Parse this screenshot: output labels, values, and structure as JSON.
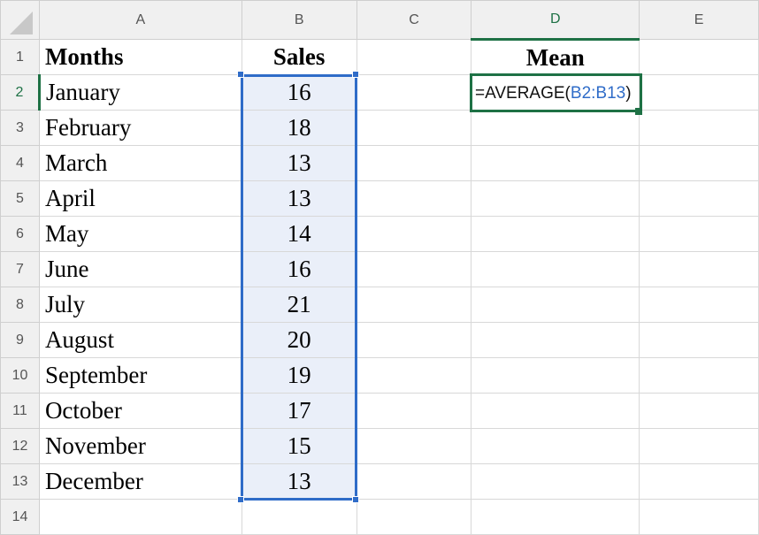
{
  "columns": [
    "A",
    "B",
    "C",
    "D",
    "E"
  ],
  "rows": [
    {
      "n": "1",
      "a": "Months",
      "b": "Sales",
      "d": "Mean"
    },
    {
      "n": "2",
      "a": "January",
      "b": "16"
    },
    {
      "n": "3",
      "a": "February",
      "b": "18"
    },
    {
      "n": "4",
      "a": "March",
      "b": "13"
    },
    {
      "n": "5",
      "a": "April",
      "b": "13"
    },
    {
      "n": "6",
      "a": "May",
      "b": "14"
    },
    {
      "n": "7",
      "a": "June",
      "b": "16"
    },
    {
      "n": "8",
      "a": "July",
      "b": "21"
    },
    {
      "n": "9",
      "a": "August",
      "b": "20"
    },
    {
      "n": "10",
      "a": "September",
      "b": "19"
    },
    {
      "n": "11",
      "a": "October",
      "b": "17"
    },
    {
      "n": "12",
      "a": "November",
      "b": "15"
    },
    {
      "n": "13",
      "a": "December",
      "b": "13"
    },
    {
      "n": "14"
    }
  ],
  "formula": {
    "prefix": "=AVERAGE(",
    "ref": "B2:B13",
    "suffix": ")"
  },
  "colors": {
    "selection": "#2f6cc8",
    "active": "#1e7145"
  }
}
